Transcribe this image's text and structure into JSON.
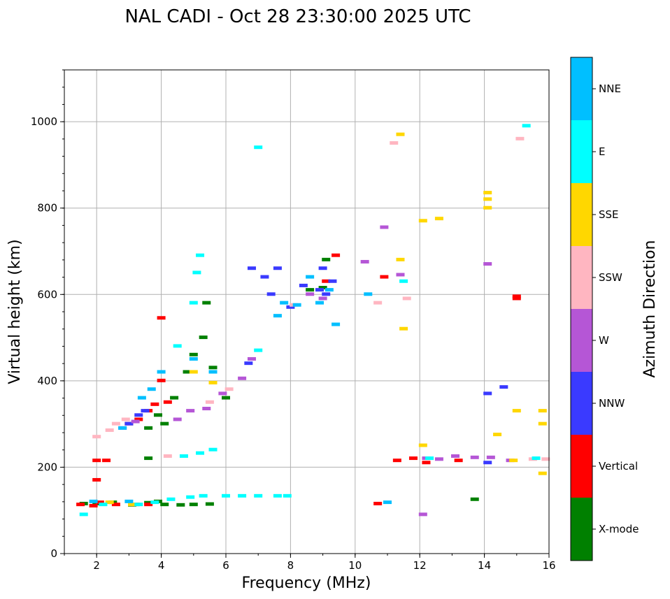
{
  "chart_data": {
    "type": "scatter",
    "title": "NAL CADI - Oct 28 23:30:00 2025 UTC",
    "xlabel": "Frequency (MHz)",
    "ylabel": "Virtual height (km)",
    "xlim": [
      1,
      16
    ],
    "ylim": [
      0,
      1120
    ],
    "xticks": [
      "2",
      "4",
      "6",
      "8",
      "10",
      "12",
      "14",
      "16"
    ],
    "yticks": [
      "0",
      "200",
      "400",
      "600",
      "800",
      "1000"
    ],
    "grid": true,
    "colorbar": {
      "label": "Azimuth Direction",
      "categories": [
        "X-mode",
        "Vertical",
        "NNW",
        "W",
        "SSW",
        "SSE",
        "E",
        "NNE"
      ],
      "colors": [
        "#008000",
        "#ff0000",
        "#3a3aff",
        "#b556d6",
        "#ffb6c1",
        "#ffd700",
        "#00ffff",
        "#00bfff"
      ]
    },
    "series": [
      {
        "name": "X-mode",
        "points": [
          [
            1.6,
            115
          ],
          [
            2.0,
            115
          ],
          [
            2.5,
            118
          ],
          [
            3.1,
            112
          ],
          [
            3.6,
            117
          ],
          [
            3.9,
            120
          ],
          [
            4.1,
            113
          ],
          [
            4.6,
            112
          ],
          [
            5.0,
            113
          ],
          [
            5.5,
            114
          ],
          [
            3.6,
            220
          ],
          [
            3.6,
            290
          ],
          [
            3.9,
            320
          ],
          [
            4.1,
            300
          ],
          [
            4.4,
            360
          ],
          [
            4.8,
            420
          ],
          [
            5.0,
            460
          ],
          [
            5.3,
            500
          ],
          [
            5.4,
            580
          ],
          [
            5.6,
            430
          ],
          [
            6.0,
            360
          ],
          [
            9.0,
            615
          ],
          [
            9.1,
            680
          ],
          [
            8.6,
            610
          ],
          [
            13.7,
            125
          ]
        ]
      },
      {
        "name": "Vertical",
        "points": [
          [
            1.5,
            113
          ],
          [
            1.9,
            110
          ],
          [
            2.1,
            118
          ],
          [
            2.6,
            113
          ],
          [
            3.2,
            113
          ],
          [
            3.6,
            113
          ],
          [
            2.0,
            215
          ],
          [
            2.3,
            215
          ],
          [
            2.0,
            170
          ],
          [
            3.0,
            300
          ],
          [
            3.3,
            310
          ],
          [
            3.6,
            330
          ],
          [
            3.8,
            345
          ],
          [
            4.0,
            400
          ],
          [
            4.0,
            545
          ],
          [
            4.2,
            350
          ],
          [
            9.1,
            630
          ],
          [
            9.4,
            690
          ],
          [
            10.7,
            115
          ],
          [
            10.9,
            640
          ],
          [
            11.3,
            215
          ],
          [
            11.8,
            220
          ],
          [
            12.2,
            210
          ],
          [
            13.2,
            215
          ],
          [
            15.0,
            590
          ],
          [
            15.0,
            595
          ]
        ]
      },
      {
        "name": "NNW",
        "points": [
          [
            3.0,
            300
          ],
          [
            3.3,
            320
          ],
          [
            3.5,
            330
          ],
          [
            6.7,
            440
          ],
          [
            6.8,
            660
          ],
          [
            7.2,
            640
          ],
          [
            7.4,
            600
          ],
          [
            7.6,
            660
          ],
          [
            8.0,
            570
          ],
          [
            8.4,
            620
          ],
          [
            8.9,
            610
          ],
          [
            9.0,
            660
          ],
          [
            9.1,
            600
          ],
          [
            9.3,
            630
          ],
          [
            14.1,
            370
          ],
          [
            14.1,
            210
          ],
          [
            14.6,
            385
          ]
        ]
      },
      {
        "name": "W",
        "points": [
          [
            2.8,
            290
          ],
          [
            3.2,
            305
          ],
          [
            4.5,
            310
          ],
          [
            4.9,
            330
          ],
          [
            5.4,
            335
          ],
          [
            5.9,
            370
          ],
          [
            6.5,
            405
          ],
          [
            6.8,
            450
          ],
          [
            8.6,
            600
          ],
          [
            9.0,
            590
          ],
          [
            10.3,
            675
          ],
          [
            10.9,
            755
          ],
          [
            11.4,
            645
          ],
          [
            12.2,
            220
          ],
          [
            12.6,
            218
          ],
          [
            13.1,
            225
          ],
          [
            13.7,
            222
          ],
          [
            14.1,
            670
          ],
          [
            14.2,
            222
          ],
          [
            14.8,
            215
          ],
          [
            12.1,
            90
          ]
        ]
      },
      {
        "name": "SSW",
        "points": [
          [
            2.0,
            270
          ],
          [
            2.4,
            285
          ],
          [
            2.6,
            300
          ],
          [
            2.9,
            310
          ],
          [
            4.2,
            225
          ],
          [
            5.5,
            350
          ],
          [
            6.1,
            380
          ],
          [
            8.1,
            575
          ],
          [
            10.7,
            580
          ],
          [
            11.2,
            950
          ],
          [
            11.6,
            590
          ],
          [
            15.1,
            960
          ],
          [
            15.5,
            218
          ],
          [
            15.9,
            218
          ]
        ]
      },
      {
        "name": "SSE",
        "points": [
          [
            2.4,
            118
          ],
          [
            3.1,
            113
          ],
          [
            5.0,
            420
          ],
          [
            5.6,
            395
          ],
          [
            11.5,
            520
          ],
          [
            11.4,
            680
          ],
          [
            11.4,
            970
          ],
          [
            12.1,
            250
          ],
          [
            12.1,
            770
          ],
          [
            12.6,
            775
          ],
          [
            14.1,
            800
          ],
          [
            14.1,
            820
          ],
          [
            14.1,
            835
          ],
          [
            14.4,
            275
          ],
          [
            15.0,
            330
          ],
          [
            15.8,
            300
          ],
          [
            15.8,
            330
          ],
          [
            15.8,
            185
          ],
          [
            14.9,
            215
          ]
        ]
      },
      {
        "name": "E",
        "points": [
          [
            1.6,
            90
          ],
          [
            2.2,
            113
          ],
          [
            3.3,
            113
          ],
          [
            3.8,
            118
          ],
          [
            4.3,
            125
          ],
          [
            4.9,
            130
          ],
          [
            5.3,
            133
          ],
          [
            6.0,
            133
          ],
          [
            6.5,
            133
          ],
          [
            7.0,
            133
          ],
          [
            7.6,
            133
          ],
          [
            7.9,
            133
          ],
          [
            4.7,
            225
          ],
          [
            5.2,
            232
          ],
          [
            5.6,
            240
          ],
          [
            5.2,
            690
          ],
          [
            5.1,
            650
          ],
          [
            5.0,
            580
          ],
          [
            4.5,
            480
          ],
          [
            7.0,
            470
          ],
          [
            7.0,
            940
          ],
          [
            11.5,
            630
          ],
          [
            12.3,
            220
          ],
          [
            15.3,
            990
          ],
          [
            15.6,
            220
          ]
        ]
      },
      {
        "name": "NNE",
        "points": [
          [
            1.9,
            120
          ],
          [
            3.0,
            120
          ],
          [
            3.4,
            360
          ],
          [
            3.7,
            380
          ],
          [
            4.0,
            420
          ],
          [
            2.8,
            290
          ],
          [
            5.0,
            450
          ],
          [
            5.6,
            420
          ],
          [
            7.6,
            550
          ],
          [
            7.8,
            580
          ],
          [
            8.2,
            575
          ],
          [
            8.6,
            640
          ],
          [
            8.9,
            580
          ],
          [
            9.4,
            530
          ],
          [
            9.2,
            610
          ],
          [
            10.4,
            600
          ],
          [
            11.0,
            118
          ]
        ]
      }
    ]
  }
}
